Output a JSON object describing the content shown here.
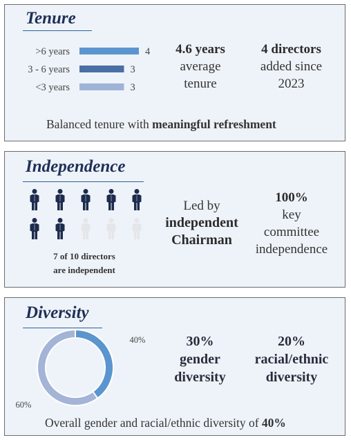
{
  "tenure": {
    "title": "Tenure",
    "stat1": {
      "strong": "4.6 years",
      "rest1": "average",
      "rest2": "tenure"
    },
    "stat2": {
      "strong": "4 directors",
      "rest1": "added since",
      "rest2": "2023"
    },
    "caption_pre": "Balanced tenure with ",
    "caption_bold": "meaningful refreshment"
  },
  "independence": {
    "title": "Independence",
    "stat1": {
      "line1": "Led by",
      "line2": "independent",
      "line3": "Chairman"
    },
    "stat2": {
      "line1": "100%",
      "line2": "key",
      "line3": "committee",
      "line4": "independence"
    },
    "icon_caption1": "7 of 10 directors",
    "icon_caption2": "are independent",
    "icons": {
      "total": 10,
      "highlighted": 7,
      "color_on": "#1d2c4d",
      "color_off": "#e4e6ea"
    }
  },
  "diversity": {
    "title": "Diversity",
    "stat1": {
      "line1": "30%",
      "line2": "gender",
      "line3": "diversity"
    },
    "stat2": {
      "line1": "20%",
      "line2": "racial/ethnic",
      "line3": "diversity"
    },
    "caption_pre": "Overall gender and racial/ethnic diversity of ",
    "caption_bold": "40%"
  },
  "chart_data": [
    {
      "type": "bar",
      "orientation": "horizontal",
      "categories": [
        ">6 years",
        "3 - 6 years",
        "<3 years"
      ],
      "values": [
        4,
        3,
        3
      ],
      "colors": [
        "#5b95cf",
        "#4a6fa5",
        "#9fb3d6"
      ],
      "xlim": [
        0,
        4
      ]
    },
    {
      "type": "pie",
      "donut": true,
      "slices": [
        {
          "label": "40%",
          "value": 40,
          "color": "#5b95cf"
        },
        {
          "label": "60%",
          "value": 60,
          "color": "#a3b4d6"
        }
      ]
    }
  ]
}
